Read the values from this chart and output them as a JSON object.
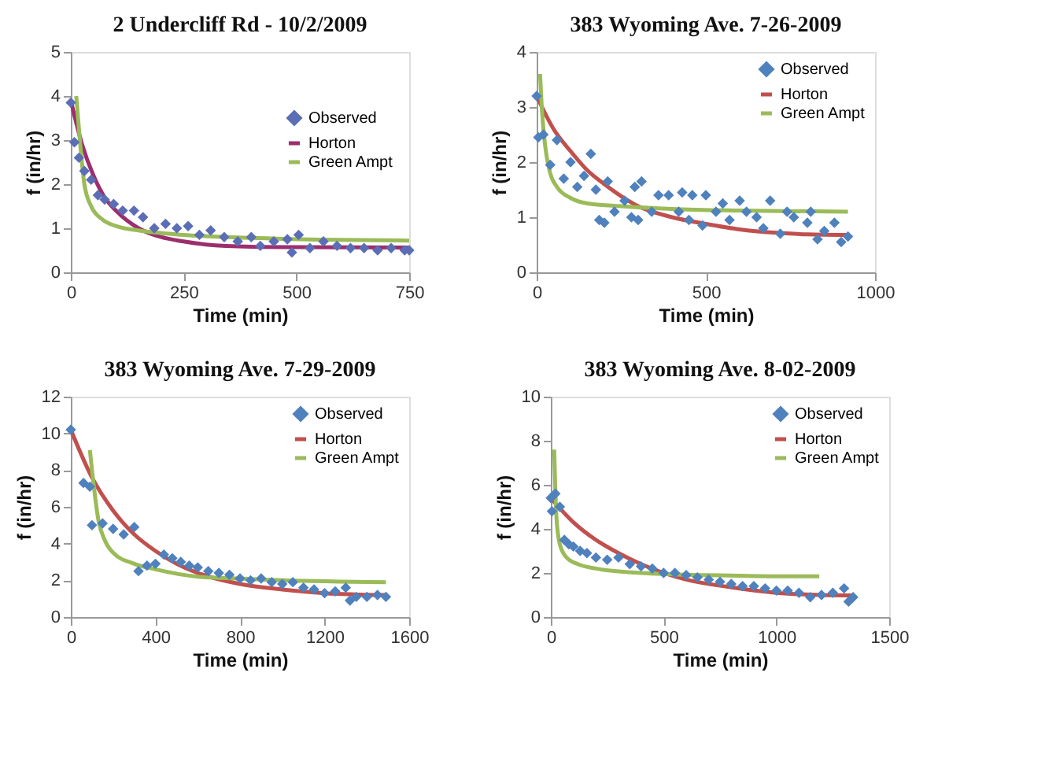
{
  "chart_data": [
    {
      "type": "scatter",
      "title": "2 Undercliff Rd - 10/2/2009",
      "xlabel": "Time (min)",
      "ylabel": "f (in/hr)",
      "xlim": [
        0,
        750
      ],
      "xticks": [
        0,
        250,
        500,
        750
      ],
      "ylim": [
        0,
        5
      ],
      "yticks": [
        0,
        1,
        2,
        3,
        4,
        5
      ],
      "grid": false,
      "legend": "right",
      "line_style": "solid",
      "series": [
        {
          "name": "Observed",
          "marker": "diamond",
          "color": "#5b6eb5",
          "x": [
            0,
            8,
            18,
            30,
            45,
            60,
            75,
            95,
            115,
            140,
            160,
            185,
            210,
            235,
            260,
            285,
            310,
            340,
            370,
            400,
            420,
            450,
            480,
            490,
            505,
            530,
            560,
            590,
            620,
            650,
            680,
            710,
            740,
            750
          ],
          "values": [
            3.85,
            2.95,
            2.6,
            2.3,
            2.1,
            1.75,
            1.65,
            1.55,
            1.4,
            1.4,
            1.25,
            1.0,
            1.1,
            1.0,
            1.05,
            0.85,
            0.95,
            0.8,
            0.7,
            0.8,
            0.6,
            0.7,
            0.75,
            0.45,
            0.85,
            0.55,
            0.7,
            0.6,
            0.55,
            0.55,
            0.5,
            0.55,
            0.5,
            0.5
          ]
        },
        {
          "name": "Horton",
          "type": "line",
          "color": "#9b2f6e",
          "x": [
            0,
            25,
            50,
            75,
            100,
            150,
            200,
            250,
            300,
            400,
            500,
            750
          ],
          "values": [
            3.9,
            2.9,
            2.2,
            1.7,
            1.4,
            1.0,
            0.8,
            0.7,
            0.63,
            0.58,
            0.57,
            0.56
          ]
        },
        {
          "name": "Green Ampt",
          "type": "line",
          "color": "#9bbb59",
          "x": [
            12,
            20,
            30,
            45,
            70,
            100,
            150,
            250,
            400,
            550,
            750
          ],
          "values": [
            4.0,
            3.0,
            2.0,
            1.5,
            1.2,
            1.05,
            0.95,
            0.85,
            0.78,
            0.74,
            0.72
          ]
        }
      ]
    },
    {
      "type": "scatter",
      "title": "383 Wyoming Ave. 7-26-2009",
      "xlabel": "Time (min)",
      "ylabel": "f (in/hr)",
      "xlim": [
        0,
        1000
      ],
      "xticks": [
        0,
        500,
        1000
      ],
      "ylim": [
        0,
        4
      ],
      "yticks": [
        0,
        1,
        2,
        3,
        4
      ],
      "grid": false,
      "legend": "top right",
      "line_style": "solid",
      "series": [
        {
          "name": "Observed",
          "marker": "diamond",
          "color": "#4f81bd",
          "x": [
            0,
            5,
            20,
            40,
            60,
            80,
            100,
            120,
            140,
            160,
            175,
            185,
            200,
            210,
            230,
            260,
            280,
            290,
            300,
            310,
            340,
            360,
            390,
            420,
            430,
            450,
            460,
            490,
            500,
            530,
            550,
            570,
            600,
            620,
            650,
            670,
            690,
            720,
            740,
            760,
            800,
            810,
            830,
            850,
            880,
            900,
            920
          ],
          "values": [
            3.2,
            2.45,
            2.5,
            1.95,
            2.4,
            1.7,
            2.0,
            1.55,
            1.75,
            2.15,
            1.5,
            0.95,
            0.9,
            1.65,
            1.1,
            1.3,
            1.0,
            1.55,
            0.95,
            1.65,
            1.1,
            1.4,
            1.4,
            1.1,
            1.45,
            0.95,
            1.4,
            0.85,
            1.4,
            1.1,
            1.25,
            0.95,
            1.3,
            1.1,
            1.0,
            0.8,
            1.3,
            0.7,
            1.1,
            1.0,
            0.9,
            1.1,
            0.6,
            0.75,
            0.9,
            0.55,
            0.65
          ]
        },
        {
          "name": "Horton",
          "type": "line",
          "color": "#c0504d",
          "x": [
            0,
            50,
            100,
            150,
            200,
            300,
            400,
            500,
            600,
            700,
            800,
            920
          ],
          "values": [
            3.2,
            2.6,
            2.2,
            1.85,
            1.6,
            1.2,
            1.0,
            0.88,
            0.78,
            0.72,
            0.69,
            0.68
          ]
        },
        {
          "name": "Green Ampt",
          "type": "line",
          "color": "#9bbb59",
          "x": [
            10,
            15,
            25,
            40,
            60,
            100,
            150,
            250,
            400,
            600,
            920
          ],
          "values": [
            3.6,
            3.0,
            2.3,
            1.8,
            1.55,
            1.35,
            1.25,
            1.2,
            1.15,
            1.12,
            1.1
          ]
        }
      ]
    },
    {
      "type": "scatter",
      "title": "383 Wyoming Ave. 7-29-2009",
      "xlabel": "Time (min)",
      "ylabel": "f (in/hr)",
      "xlim": [
        0,
        1600
      ],
      "xticks": [
        0,
        400,
        800,
        1200,
        1600
      ],
      "ylim": [
        0,
        12
      ],
      "yticks": [
        0,
        2,
        4,
        6,
        8,
        10,
        12
      ],
      "grid": false,
      "legend": "top right",
      "line_style": "solid",
      "series": [
        {
          "name": "Observed",
          "marker": "diamond",
          "color": "#4f81bd",
          "x": [
            0,
            60,
            90,
            100,
            150,
            200,
            250,
            300,
            320,
            360,
            400,
            440,
            480,
            520,
            560,
            600,
            650,
            700,
            750,
            800,
            850,
            900,
            950,
            1000,
            1050,
            1100,
            1150,
            1200,
            1250,
            1300,
            1320,
            1350,
            1400,
            1450,
            1490
          ],
          "values": [
            10.2,
            7.3,
            7.1,
            5.0,
            5.1,
            4.8,
            4.5,
            4.9,
            2.5,
            2.8,
            2.9,
            3.4,
            3.2,
            3.0,
            2.8,
            2.7,
            2.5,
            2.4,
            2.3,
            2.1,
            2.0,
            2.1,
            1.9,
            1.8,
            1.9,
            1.6,
            1.5,
            1.3,
            1.4,
            1.6,
            0.9,
            1.1,
            1.1,
            1.2,
            1.1
          ]
        },
        {
          "name": "Horton",
          "type": "line",
          "color": "#c0504d",
          "x": [
            0,
            100,
            200,
            300,
            400,
            500,
            600,
            800,
            1000,
            1200,
            1490
          ],
          "values": [
            10.2,
            7.6,
            5.8,
            4.5,
            3.6,
            2.9,
            2.4,
            1.8,
            1.5,
            1.3,
            1.2
          ]
        },
        {
          "name": "Green Ampt",
          "type": "line",
          "color": "#9bbb59",
          "x": [
            90,
            110,
            130,
            160,
            200,
            300,
            400,
            600,
            800,
            1000,
            1490
          ],
          "values": [
            9.1,
            7.0,
            5.3,
            4.2,
            3.5,
            2.9,
            2.6,
            2.2,
            2.1,
            2.0,
            1.9
          ]
        }
      ]
    },
    {
      "type": "scatter",
      "title": "383 Wyoming Ave. 8-02-2009",
      "xlabel": "Time (min)",
      "ylabel": "f (in/hr)",
      "xlim": [
        0,
        1500
      ],
      "xticks": [
        0,
        500,
        1000,
        1500
      ],
      "ylim": [
        0,
        10
      ],
      "yticks": [
        0,
        2,
        4,
        6,
        8,
        10
      ],
      "grid": false,
      "legend": "top right",
      "line_style": "solid",
      "series": [
        {
          "name": "Observed",
          "marker": "diamond",
          "color": "#4f81bd",
          "x": [
            0,
            5,
            20,
            40,
            60,
            80,
            100,
            130,
            160,
            200,
            250,
            300,
            350,
            400,
            450,
            500,
            550,
            600,
            650,
            700,
            750,
            800,
            850,
            900,
            950,
            1000,
            1050,
            1100,
            1150,
            1200,
            1250,
            1300,
            1320,
            1340
          ],
          "values": [
            5.4,
            4.8,
            5.6,
            5.0,
            3.5,
            3.3,
            3.2,
            3.0,
            2.9,
            2.7,
            2.6,
            2.7,
            2.4,
            2.3,
            2.2,
            2.0,
            2.0,
            1.9,
            1.8,
            1.7,
            1.6,
            1.5,
            1.4,
            1.4,
            1.3,
            1.2,
            1.2,
            1.1,
            0.9,
            1.0,
            1.1,
            1.3,
            0.7,
            0.9
          ]
        },
        {
          "name": "Horton",
          "type": "line",
          "color": "#c0504d",
          "x": [
            0,
            100,
            200,
            300,
            400,
            500,
            600,
            800,
            1000,
            1200,
            1340
          ],
          "values": [
            5.4,
            4.3,
            3.5,
            2.9,
            2.4,
            2.0,
            1.7,
            1.35,
            1.1,
            1.0,
            0.98
          ]
        },
        {
          "name": "Green Ampt",
          "type": "line",
          "color": "#9bbb59",
          "x": [
            15,
            25,
            40,
            70,
            120,
            200,
            400,
            700,
            1000,
            1190
          ],
          "values": [
            7.6,
            4.5,
            3.3,
            2.7,
            2.4,
            2.2,
            2.0,
            1.9,
            1.85,
            1.85
          ]
        }
      ]
    }
  ]
}
